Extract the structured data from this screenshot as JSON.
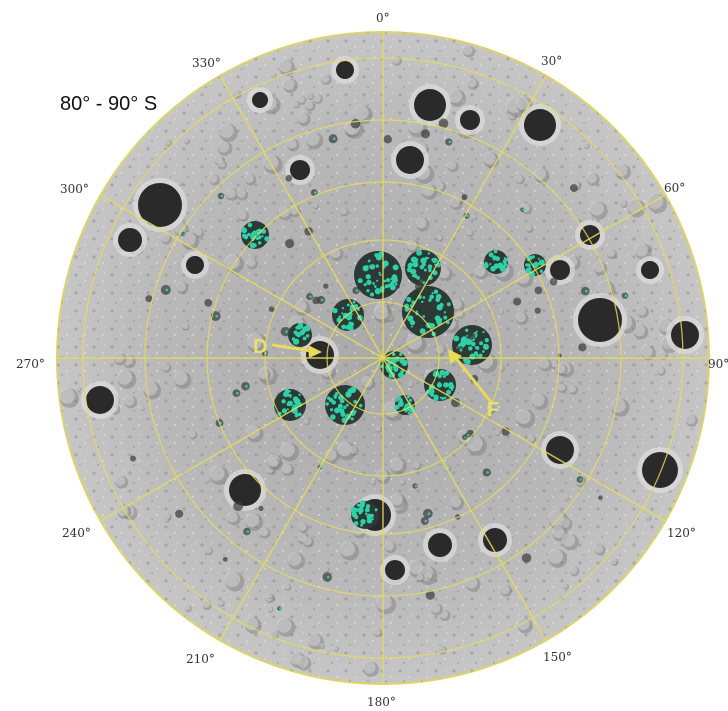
{
  "map": {
    "region_title": "80° - 90° S",
    "longitude_labels": [
      "0°",
      "30°",
      "60°",
      "90°",
      "120°",
      "150°",
      "180°",
      "210°",
      "240°",
      "270°",
      "300°",
      "330°"
    ],
    "markers": [
      {
        "label": "D"
      },
      {
        "label": "F"
      }
    ],
    "colors": {
      "grid": "#e6dc5a",
      "ice_deposits": "#2fd0a8",
      "surface": "#b8b8b8",
      "shadow": "#2a2a2a"
    }
  }
}
